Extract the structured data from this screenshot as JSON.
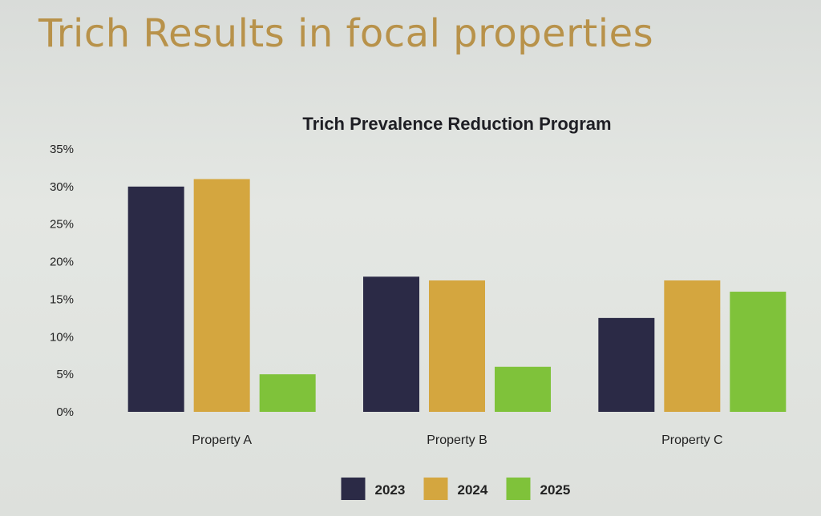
{
  "slide": {
    "title": "Trich Results in focal properties"
  },
  "chart_data": {
    "type": "bar",
    "title": "Trich Prevalence Reduction Program",
    "xlabel": "",
    "ylabel": "",
    "ylim": [
      0,
      35
    ],
    "yticks": [
      0,
      5,
      10,
      15,
      20,
      25,
      30,
      35
    ],
    "ytick_labels": [
      "0%",
      "5%",
      "10%",
      "15%",
      "20%",
      "25%",
      "30%",
      "35%"
    ],
    "grid": false,
    "legend_position": "bottom",
    "categories": [
      "Property A",
      "Property B",
      "Property C"
    ],
    "series": [
      {
        "name": "2023",
        "color": "#2b2a46",
        "values": [
          30,
          18,
          12.5
        ]
      },
      {
        "name": "2024",
        "color": "#d4a63f",
        "values": [
          31,
          17.5,
          17.5
        ]
      },
      {
        "name": "2025",
        "color": "#7fc23a",
        "values": [
          5,
          6,
          16
        ]
      }
    ]
  }
}
